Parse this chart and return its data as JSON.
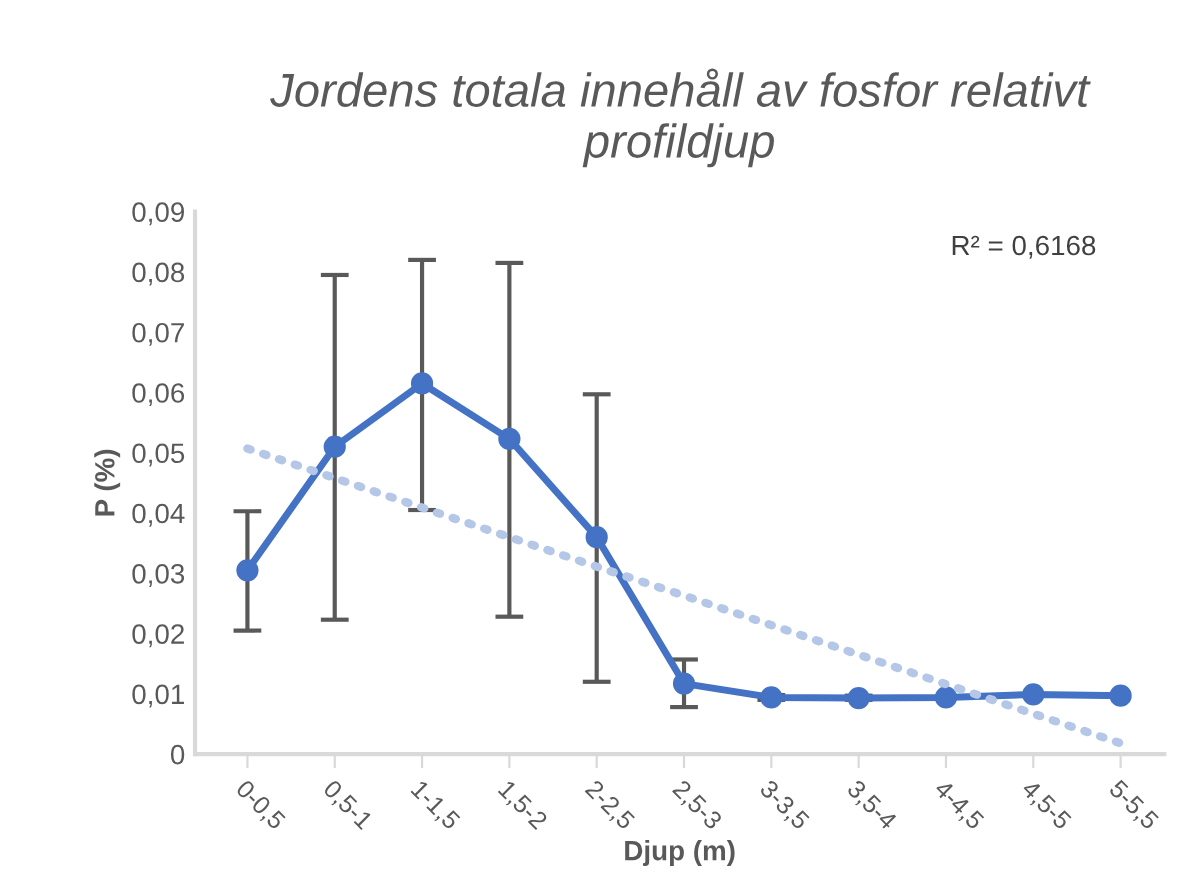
{
  "chart_data": {
    "type": "line",
    "title": "Jordens totala innehåll av fosfor relativt profildjup",
    "xlabel": "Djup (m)",
    "ylabel": "P (%)",
    "categories": [
      "0-0,5",
      "0,5-1",
      "1-1,5",
      "1,5-2",
      "2-2,5",
      "2,5-3",
      "3-3,5",
      "3,5-4",
      "4-4,5",
      "4,5-5",
      "5-5,5"
    ],
    "series": [
      {
        "color": "#4472c4",
        "marker": "circle",
        "line_style": "solid",
        "values": [
          0.0305,
          0.051,
          0.0615,
          0.0523,
          0.036,
          0.0117,
          0.0094,
          0.0093,
          0.0094,
          0.0099,
          0.0097
        ],
        "errors": [
          [
            0.0205,
            0.0403
          ],
          [
            0.0223,
            0.0795
          ],
          [
            0.0405,
            0.082
          ],
          [
            0.0228,
            0.0815
          ],
          [
            0.012,
            0.0597
          ],
          [
            0.0078,
            0.0157
          ],
          [
            0.009,
            0.0098
          ],
          [
            0.009,
            0.0097
          ],
          null,
          null,
          null
        ]
      },
      {
        "color": "#b4c7e7",
        "marker": "none",
        "line_style": "dotted",
        "values": [
          0.0507,
          0.0458,
          0.0409,
          0.036,
          0.0311,
          0.0263,
          0.0214,
          0.0165,
          0.0116,
          0.0067,
          0.0018
        ]
      }
    ],
    "ylim": [
      0,
      0.09
    ],
    "yticks": [
      {
        "value": 0,
        "label": "0"
      },
      {
        "value": 0.01,
        "label": "0,01"
      },
      {
        "value": 0.02,
        "label": "0,02"
      },
      {
        "value": 0.03,
        "label": "0,03"
      },
      {
        "value": 0.04,
        "label": "0,04"
      },
      {
        "value": 0.05,
        "label": "0,05"
      },
      {
        "value": 0.06,
        "label": "0,06"
      },
      {
        "value": 0.07,
        "label": "0,07"
      },
      {
        "value": 0.08,
        "label": "0,08"
      },
      {
        "value": 0.09,
        "label": "0,09"
      }
    ],
    "grid": false,
    "annotations": [
      "R² = 0,6168"
    ]
  }
}
